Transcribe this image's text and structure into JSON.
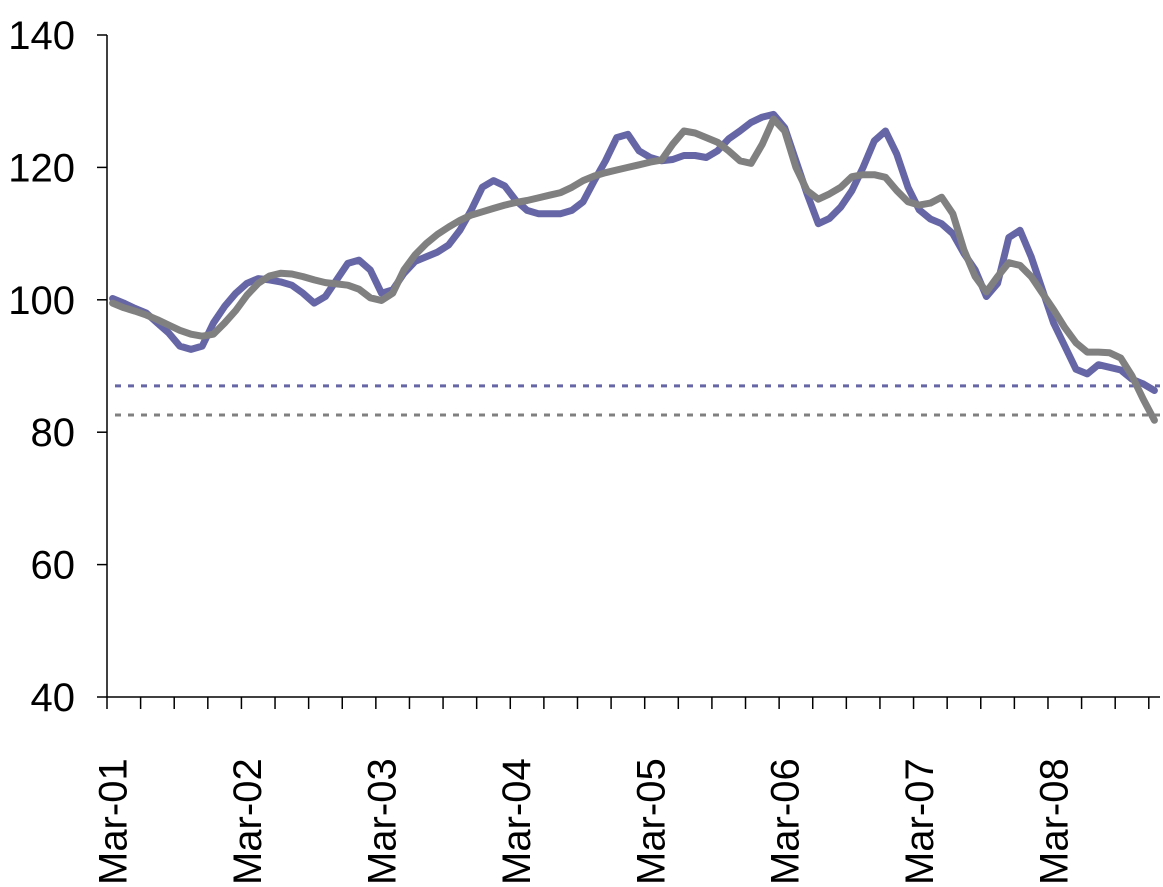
{
  "chart_data": {
    "type": "line",
    "categories": [
      "Mar-01",
      null,
      null,
      null,
      null,
      null,
      null,
      null,
      null,
      null,
      null,
      null,
      "Mar-02",
      null,
      null,
      null,
      null,
      null,
      null,
      null,
      null,
      null,
      null,
      null,
      "Mar-03",
      null,
      null,
      null,
      null,
      null,
      null,
      null,
      null,
      null,
      null,
      null,
      "Mar-04",
      null,
      null,
      null,
      null,
      null,
      null,
      null,
      null,
      null,
      null,
      null,
      "Mar-05",
      null,
      null,
      null,
      null,
      null,
      null,
      null,
      null,
      null,
      null,
      null,
      "Mar-06",
      null,
      null,
      null,
      null,
      null,
      null,
      null,
      null,
      null,
      null,
      null,
      "Mar-07",
      null,
      null,
      null,
      null,
      null,
      null,
      null,
      null,
      null,
      null,
      null,
      "Mar-08",
      null,
      null,
      null,
      null,
      null,
      null,
      null,
      null,
      null
    ],
    "series": [
      {
        "color": "#6666a6",
        "values": [
          100.2,
          99.5,
          98.7,
          98,
          96.5,
          95,
          93,
          92.5,
          93,
          96.5,
          99,
          101,
          102.5,
          103.2,
          103,
          102.7,
          102.2,
          101,
          99.5,
          100.5,
          103,
          105.5,
          106,
          104.5,
          101,
          101.5,
          104,
          105.8,
          106.5,
          107.2,
          108.3,
          110.5,
          113.5,
          117,
          118,
          117.2,
          115,
          113.5,
          113,
          113,
          113,
          113.5,
          114.8,
          118,
          121,
          124.5,
          125,
          122.5,
          121.5,
          121,
          121.2,
          121.8,
          121.8,
          121.5,
          122.5,
          124.3,
          125.5,
          126.8,
          127.6,
          128,
          126,
          121,
          116,
          111.5,
          112.3,
          114,
          116.5,
          120,
          124,
          125.5,
          122,
          117,
          113.6,
          112.2,
          111.5,
          110,
          107,
          104.5,
          100.5,
          102.5,
          109.4,
          110.5,
          106.5,
          101.5,
          96.5,
          93,
          89.5,
          88.8,
          90.2,
          89.8,
          89.4,
          88,
          87.3,
          86.3
        ]
      },
      {
        "color": "#808080",
        "values": [
          99.5,
          98.8,
          98.3,
          97.7,
          97,
          96.2,
          95.4,
          94.8,
          94.5,
          94.8,
          96.5,
          98.4,
          100.7,
          102.5,
          103.6,
          104,
          103.9,
          103.5,
          103,
          102.6,
          102.4,
          102.2,
          101.6,
          100.3,
          99.9,
          101,
          104.5,
          106.8,
          108.5,
          109.9,
          111,
          112,
          112.8,
          113.3,
          113.8,
          114.3,
          114.7,
          115,
          115.4,
          115.8,
          116.2,
          117,
          118,
          118.7,
          119.2,
          119.6,
          120,
          120.4,
          120.8,
          121.1,
          123.5,
          125.5,
          125.2,
          124.5,
          123.8,
          122.5,
          121,
          120.6,
          123.5,
          127.3,
          125.5,
          120,
          116.5,
          115.2,
          116,
          117,
          118.6,
          118.9,
          118.9,
          118.5,
          116.5,
          114.8,
          114.3,
          114.6,
          115.5,
          113,
          107.5,
          103.5,
          101.2,
          103.5,
          105.6,
          105.2,
          103.5,
          101,
          98.5,
          95.8,
          93.5,
          92.1,
          92.1,
          92,
          91.2,
          88.5,
          85,
          81.8
        ]
      }
    ],
    "reference_lines": [
      {
        "value": 87.0,
        "color": "#6666a6"
      },
      {
        "value": 82.6,
        "color": "#808080"
      }
    ],
    "ylim": [
      40,
      140
    ],
    "yticks": [
      40,
      60,
      80,
      100,
      120,
      140
    ],
    "grid": false
  }
}
